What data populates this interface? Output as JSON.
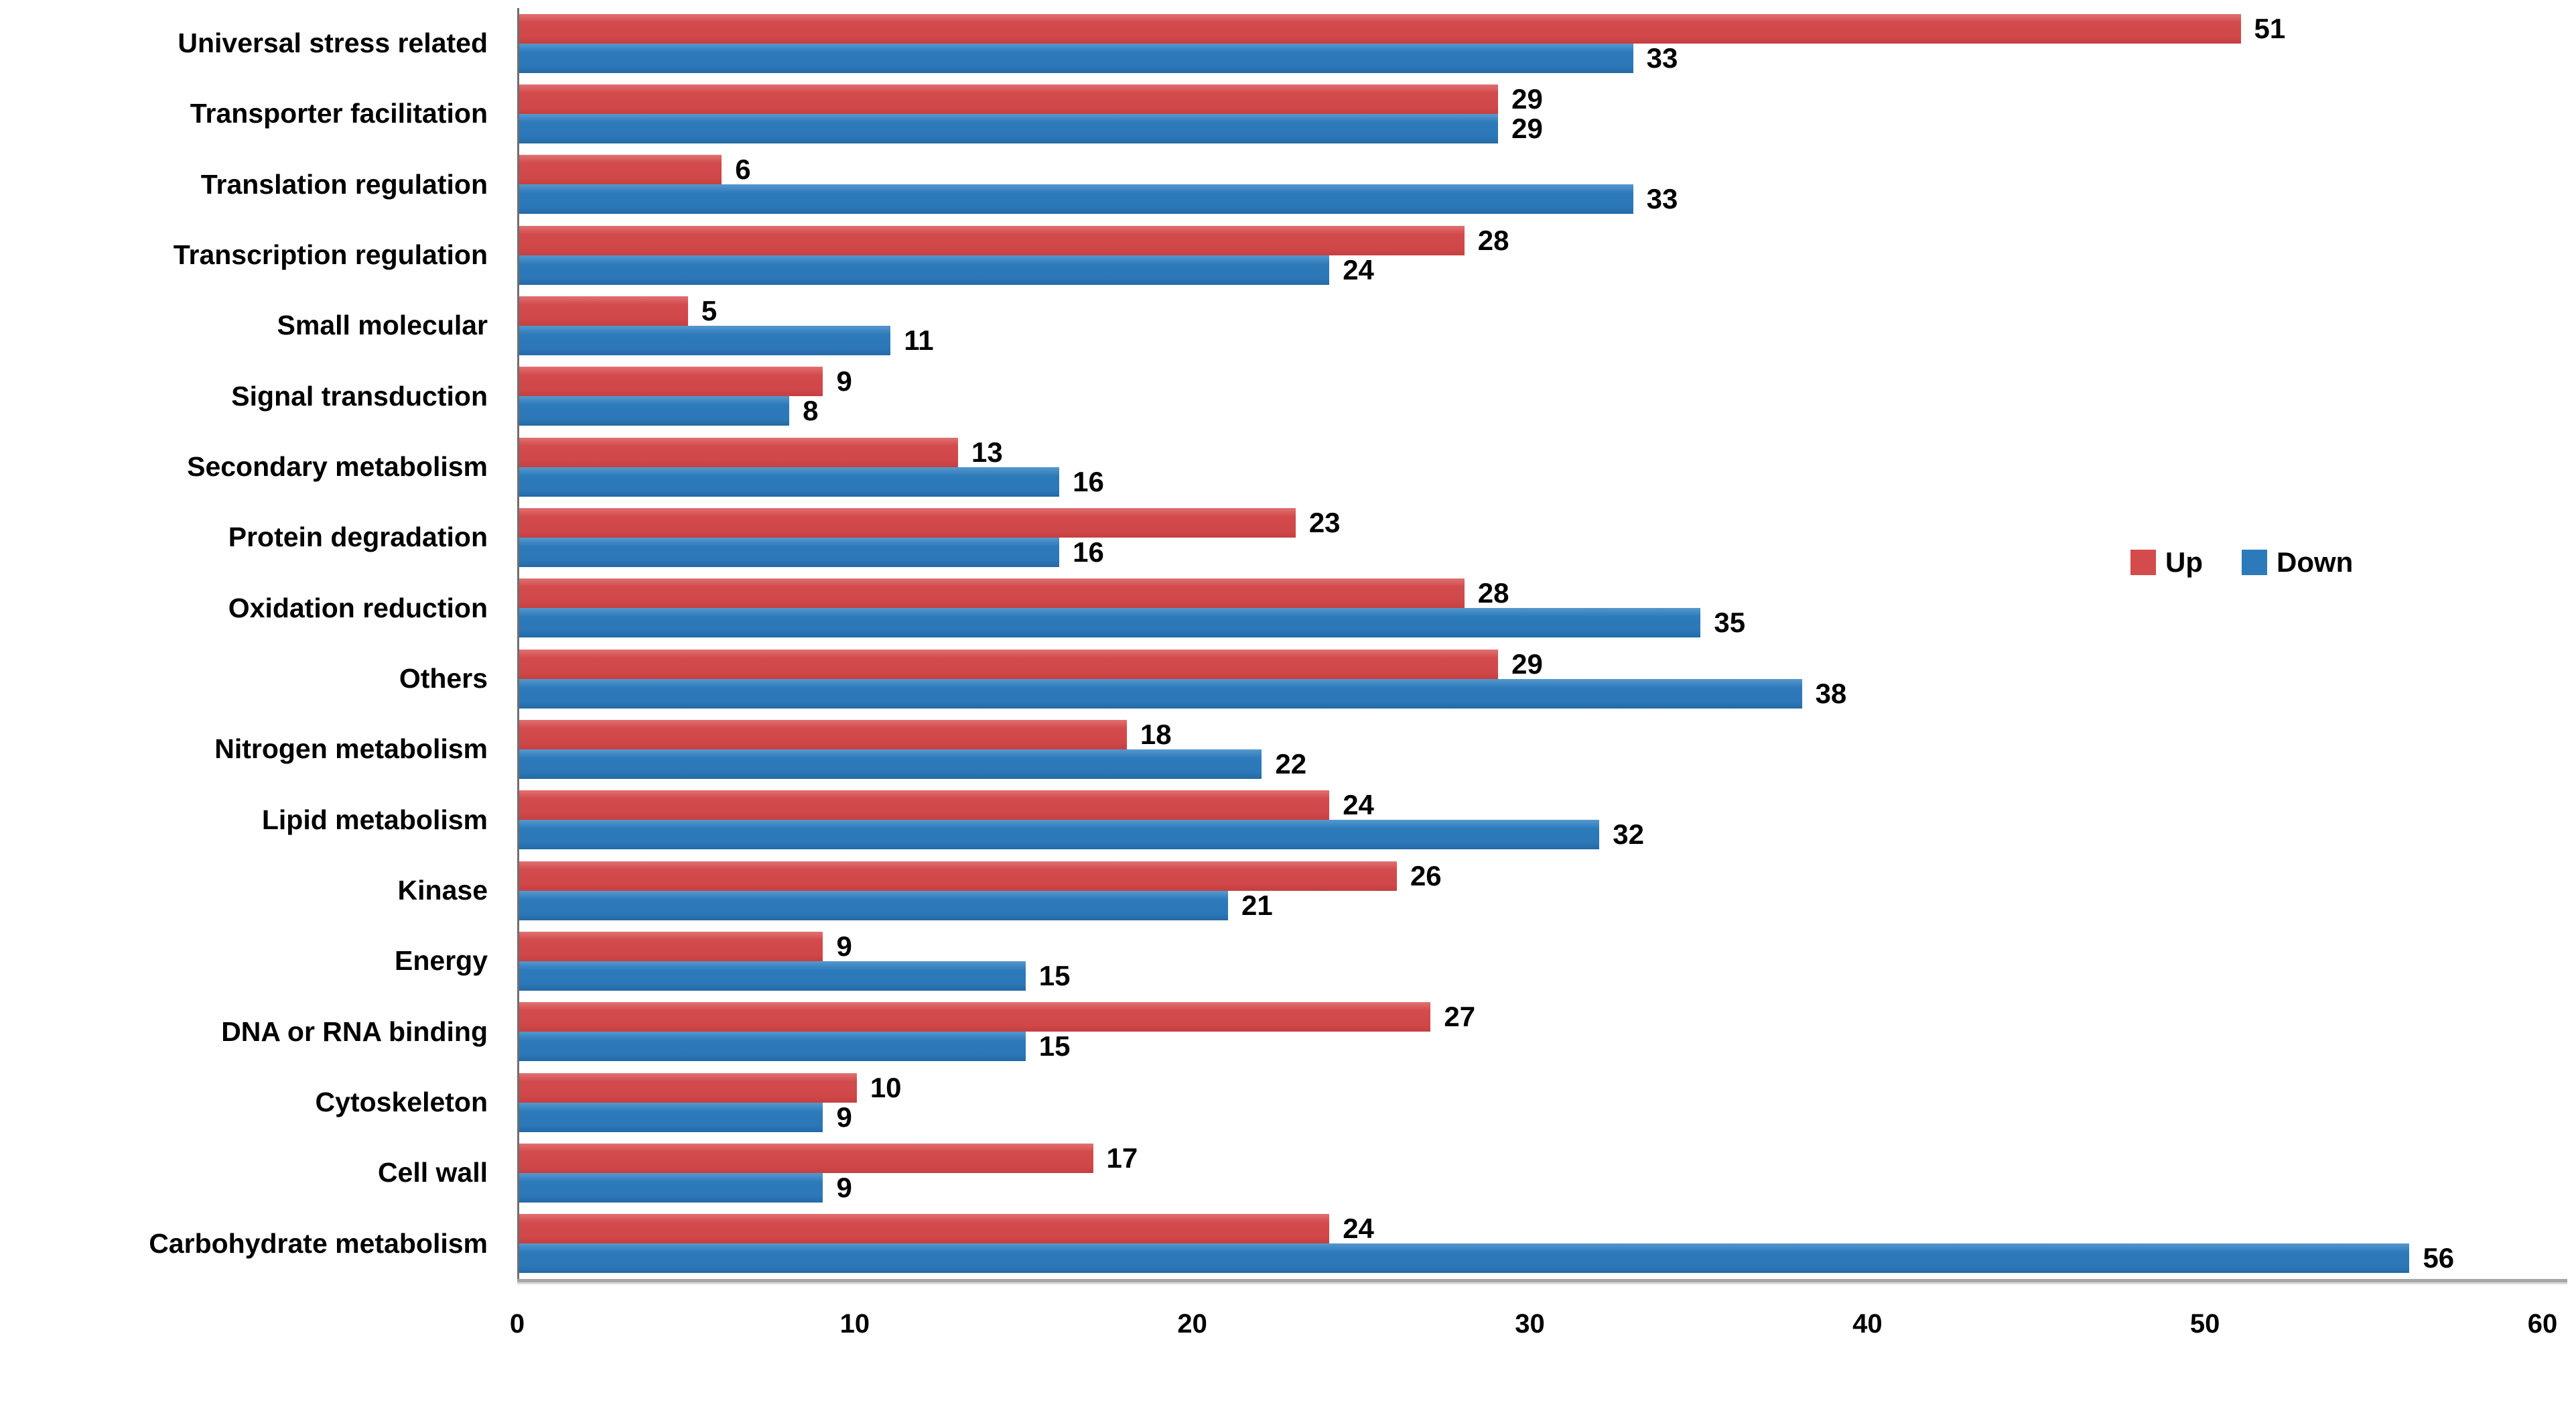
{
  "chart_data": {
    "type": "bar",
    "orientation": "horizontal",
    "title": "",
    "xlabel": "",
    "ylabel": "",
    "xlim": [
      0,
      60
    ],
    "xticks": [
      0,
      10,
      20,
      30,
      40,
      50,
      60
    ],
    "grid": false,
    "legend_position": "right-middle",
    "categories_order": "top-to-bottom",
    "categories": [
      "Universal stress related",
      "Transporter facilitation",
      "Translation regulation",
      "Transcription regulation",
      "Small molecular",
      "Signal transduction",
      "Secondary  metabolism",
      "Protein degradation",
      "Oxidation reduction",
      "Others",
      "Nitrogen metabolism",
      "Lipid metabolism",
      "Kinase",
      "Energy",
      "DNA or RNA binding",
      "Cytoskeleton",
      "Cell wall",
      "Carbohydrate metabolism"
    ],
    "series": [
      {
        "name": "Up",
        "color": "#d34b4c",
        "values": [
          51,
          29,
          6,
          28,
          5,
          9,
          13,
          23,
          28,
          29,
          18,
          24,
          26,
          9,
          27,
          10,
          17,
          24
        ]
      },
      {
        "name": "Down",
        "color": "#2d7abb",
        "values": [
          33,
          29,
          33,
          24,
          11,
          8,
          16,
          16,
          35,
          38,
          22,
          32,
          21,
          15,
          15,
          9,
          9,
          56
        ]
      }
    ],
    "colors": {
      "up": "#d34b4c",
      "down": "#2d7abb",
      "axis_line": "#6f6f6f",
      "baseline": "#a6a6a6",
      "text": "#000000"
    }
  }
}
